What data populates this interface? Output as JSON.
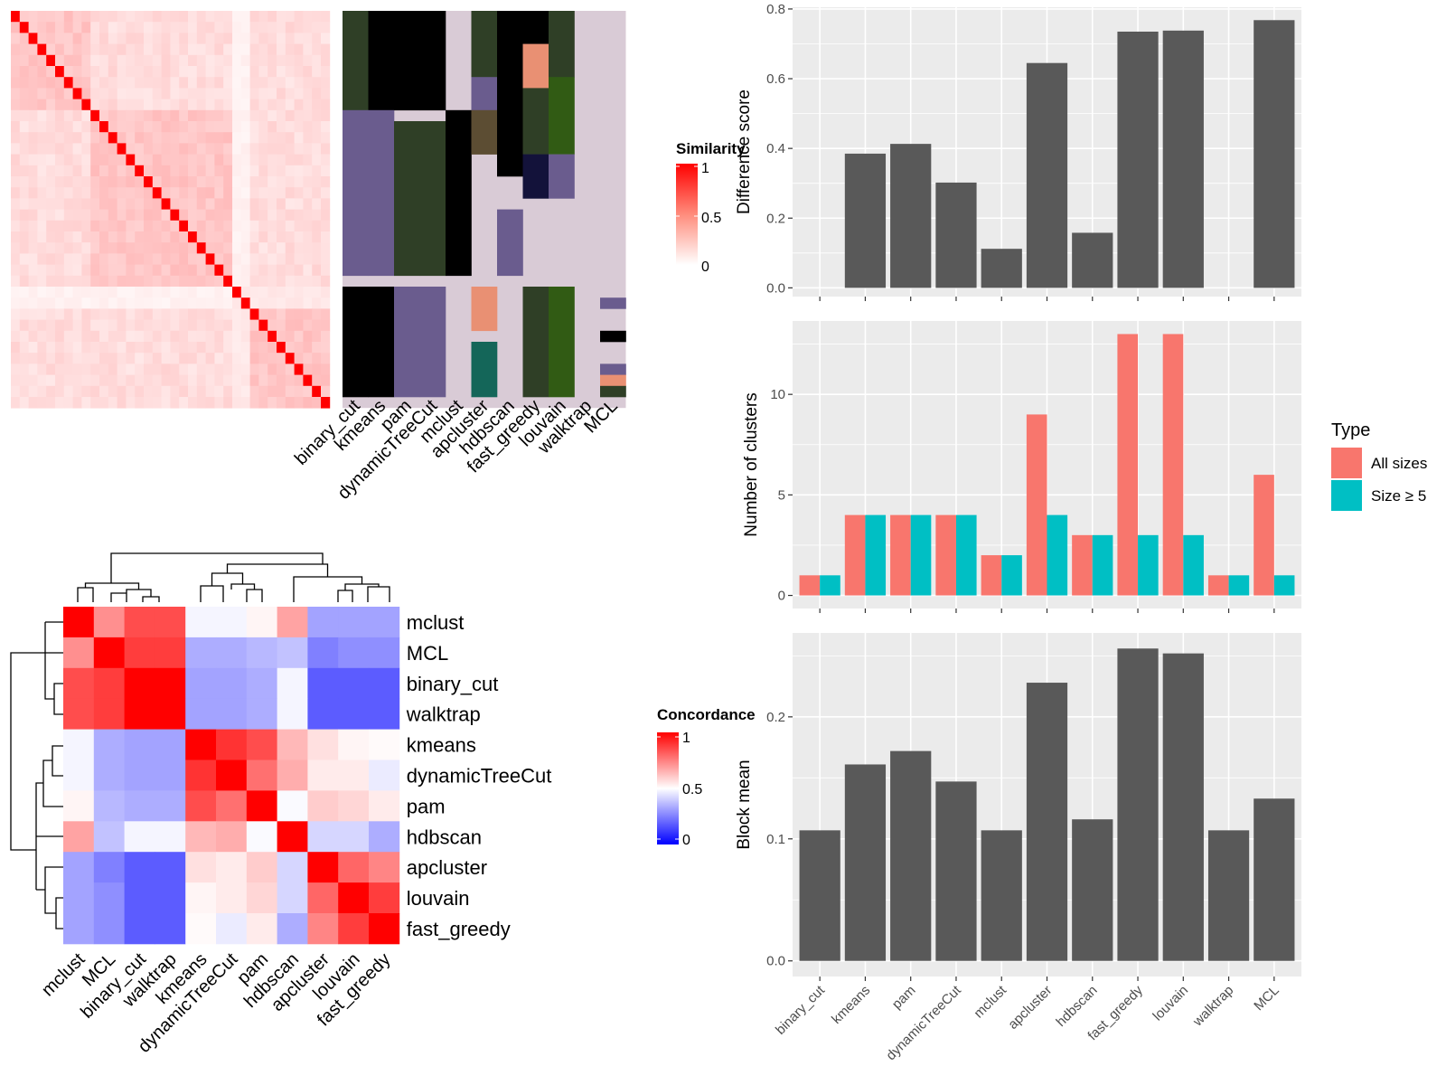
{
  "chart_data": [
    {
      "type": "heatmap",
      "id": "similarity",
      "n_cells": 36,
      "legend": {
        "title": "Similarity",
        "ticks": [
          "1",
          "0.5",
          "0"
        ],
        "colors": [
          "#ff0000",
          "#ffffff"
        ]
      },
      "annotation_columns": [
        "binary_cut",
        "kmeans",
        "pam",
        "dynamicTreeCut",
        "mclust",
        "apcluster",
        "hdbscan",
        "fast_greedy",
        "louvain",
        "walktrap",
        "MCL"
      ],
      "annotation_default_color": "#d9cbd6",
      "annotation_palette": [
        "#2f3f26",
        "#000000",
        "#6a5c8e",
        "#e99073",
        "#315b14",
        "#5c4d33",
        "#13123a",
        "#146659",
        "#b8c57d",
        "#8a7a9a"
      ],
      "annotation_blocks": [
        {
          "col": 0,
          "r0": 0,
          "r1": 9,
          "c": 0
        },
        {
          "col": 0,
          "r0": 25,
          "r1": 35,
          "c": 1
        },
        {
          "col": 0,
          "r0": 9,
          "r1": 24,
          "c": 2
        },
        {
          "col": 1,
          "r0": 0,
          "r1": 9,
          "c": 1
        },
        {
          "col": 1,
          "r0": 25,
          "r1": 35,
          "c": 1
        },
        {
          "col": 1,
          "r0": 9,
          "r1": 24,
          "c": 2
        },
        {
          "col": 2,
          "r0": 0,
          "r1": 9,
          "c": 1
        },
        {
          "col": 2,
          "r0": 10,
          "r1": 24,
          "c": 0
        },
        {
          "col": 2,
          "r0": 25,
          "r1": 35,
          "c": 2
        },
        {
          "col": 3,
          "r0": 0,
          "r1": 9,
          "c": 1
        },
        {
          "col": 3,
          "r0": 10,
          "r1": 24,
          "c": 0
        },
        {
          "col": 3,
          "r0": 25,
          "r1": 35,
          "c": 2
        },
        {
          "col": 4,
          "r0": 9,
          "r1": 24,
          "c": 1
        },
        {
          "col": 5,
          "r0": 0,
          "r1": 6,
          "c": 0
        },
        {
          "col": 5,
          "r0": 6,
          "r1": 9,
          "c": 2
        },
        {
          "col": 5,
          "r0": 9,
          "r1": 13,
          "c": 5
        },
        {
          "col": 5,
          "r0": 25,
          "r1": 29,
          "c": 3
        },
        {
          "col": 5,
          "r0": 30,
          "r1": 35,
          "c": 7
        },
        {
          "col": 6,
          "r0": 0,
          "r1": 15,
          "c": 1
        },
        {
          "col": 6,
          "r0": 18,
          "r1": 24,
          "c": 2
        },
        {
          "col": 7,
          "r0": 0,
          "r1": 3,
          "c": 1
        },
        {
          "col": 7,
          "r0": 3,
          "r1": 7,
          "c": 3
        },
        {
          "col": 7,
          "r0": 7,
          "r1": 13,
          "c": 0
        },
        {
          "col": 7,
          "r0": 13,
          "r1": 17,
          "c": 6
        },
        {
          "col": 7,
          "r0": 25,
          "r1": 35,
          "c": 0
        },
        {
          "col": 8,
          "r0": 0,
          "r1": 6,
          "c": 0
        },
        {
          "col": 8,
          "r0": 6,
          "r1": 13,
          "c": 4
        },
        {
          "col": 8,
          "r0": 13,
          "r1": 17,
          "c": 2
        },
        {
          "col": 8,
          "r0": 25,
          "r1": 35,
          "c": 4
        },
        {
          "col": 10,
          "r0": 26,
          "r1": 27,
          "c": 2
        },
        {
          "col": 10,
          "r0": 29,
          "r1": 30,
          "c": 1
        },
        {
          "col": 10,
          "r0": 32,
          "r1": 33,
          "c": 2
        },
        {
          "col": 10,
          "r0": 33,
          "r1": 34,
          "c": 3
        },
        {
          "col": 10,
          "r0": 34,
          "r1": 35,
          "c": 0
        }
      ]
    },
    {
      "type": "heatmap",
      "id": "concordance",
      "legend": {
        "title": "Concordance",
        "ticks": [
          "1",
          "0.5",
          "0"
        ],
        "colors": [
          "#ff0000",
          "#ffffff",
          "#0000ff"
        ]
      },
      "row_labels": [
        "mclust",
        "MCL",
        "binary_cut",
        "walktrap",
        "kmeans",
        "dynamicTreeCut",
        "pam",
        "hdbscan",
        "apcluster",
        "louvain",
        "fast_greedy"
      ],
      "col_labels": [
        "mclust",
        "MCL",
        "binary_cut",
        "walktrap",
        "kmeans",
        "dynamicTreeCut",
        "pam",
        "hdbscan",
        "apcluster",
        "louvain",
        "fast_greedy"
      ],
      "values": [
        [
          1.0,
          0.72,
          0.85,
          0.85,
          0.48,
          0.48,
          0.52,
          0.68,
          0.32,
          0.32,
          0.32
        ],
        [
          0.72,
          1.0,
          0.88,
          0.88,
          0.34,
          0.34,
          0.36,
          0.38,
          0.25,
          0.28,
          0.28
        ],
        [
          0.85,
          0.88,
          1.0,
          1.0,
          0.32,
          0.32,
          0.34,
          0.48,
          0.18,
          0.18,
          0.18
        ],
        [
          0.85,
          0.88,
          1.0,
          1.0,
          0.32,
          0.32,
          0.34,
          0.48,
          0.18,
          0.18,
          0.18
        ],
        [
          0.48,
          0.34,
          0.32,
          0.32,
          1.0,
          0.9,
          0.85,
          0.64,
          0.56,
          0.52,
          0.51
        ],
        [
          0.48,
          0.34,
          0.32,
          0.32,
          0.9,
          1.0,
          0.78,
          0.66,
          0.54,
          0.54,
          0.46
        ],
        [
          0.52,
          0.36,
          0.34,
          0.34,
          0.85,
          0.78,
          1.0,
          0.49,
          0.6,
          0.58,
          0.54
        ],
        [
          0.68,
          0.38,
          0.48,
          0.48,
          0.64,
          0.66,
          0.49,
          1.0,
          0.42,
          0.42,
          0.34
        ],
        [
          0.32,
          0.25,
          0.18,
          0.18,
          0.56,
          0.54,
          0.6,
          0.42,
          1.0,
          0.8,
          0.74
        ],
        [
          0.32,
          0.28,
          0.18,
          0.18,
          0.52,
          0.54,
          0.58,
          0.42,
          0.8,
          1.0,
          0.88
        ],
        [
          0.32,
          0.28,
          0.18,
          0.18,
          0.51,
          0.46,
          0.54,
          0.34,
          0.74,
          0.88,
          1.0
        ]
      ]
    },
    {
      "type": "bar",
      "id": "difference",
      "categories": [
        "binary_cut",
        "kmeans",
        "pam",
        "dynamicTreeCut",
        "mclust",
        "apcluster",
        "hdbscan",
        "fast_greedy",
        "louvain",
        "walktrap",
        "MCL"
      ],
      "values": [
        0,
        0.385,
        0.413,
        0.302,
        0.112,
        0.645,
        0.158,
        0.735,
        0.738,
        0,
        0.768
      ],
      "ylabel": "Difference score",
      "ylim": [
        -0.025,
        0.805
      ],
      "yticks": [
        0.0,
        0.2,
        0.4,
        0.6,
        0.8
      ],
      "ytick_labels": [
        "0.0",
        "0.2",
        "0.4",
        "0.6",
        "0.8"
      ],
      "color": "#595959",
      "grid": true
    },
    {
      "type": "bar",
      "id": "nclusters",
      "categories": [
        "binary_cut",
        "kmeans",
        "pam",
        "dynamicTreeCut",
        "mclust",
        "apcluster",
        "hdbscan",
        "fast_greedy",
        "louvain",
        "walktrap",
        "MCL"
      ],
      "series": [
        {
          "name": "All sizes",
          "values": [
            1,
            4,
            4,
            4,
            2,
            9,
            3,
            13,
            13,
            1,
            6
          ],
          "color": "#f8766d"
        },
        {
          "name": "Size ≥ 5",
          "values": [
            1,
            4,
            4,
            4,
            2,
            4,
            3,
            3,
            3,
            1,
            1
          ],
          "color": "#00bfc4"
        }
      ],
      "ylabel": "Number of clusters",
      "ylim": [
        -0.65,
        13.65
      ],
      "yticks": [
        0,
        5,
        10
      ],
      "ytick_labels": [
        "0",
        "5",
        "10"
      ],
      "legend": {
        "title": "Type",
        "position": "right"
      },
      "grid": true
    },
    {
      "type": "bar",
      "id": "blockmean",
      "categories": [
        "binary_cut",
        "kmeans",
        "pam",
        "dynamicTreeCut",
        "mclust",
        "apcluster",
        "hdbscan",
        "fast_greedy",
        "louvain",
        "walktrap",
        "MCL"
      ],
      "values": [
        0.107,
        0.161,
        0.172,
        0.147,
        0.107,
        0.228,
        0.116,
        0.256,
        0.252,
        0.107,
        0.133
      ],
      "ylabel": "Block mean",
      "ylim": [
        -0.0128,
        0.2688
      ],
      "yticks": [
        0.0,
        0.1,
        0.2
      ],
      "ytick_labels": [
        "0.0",
        "0.1",
        "0.2"
      ],
      "color": "#595959",
      "grid": true
    }
  ]
}
